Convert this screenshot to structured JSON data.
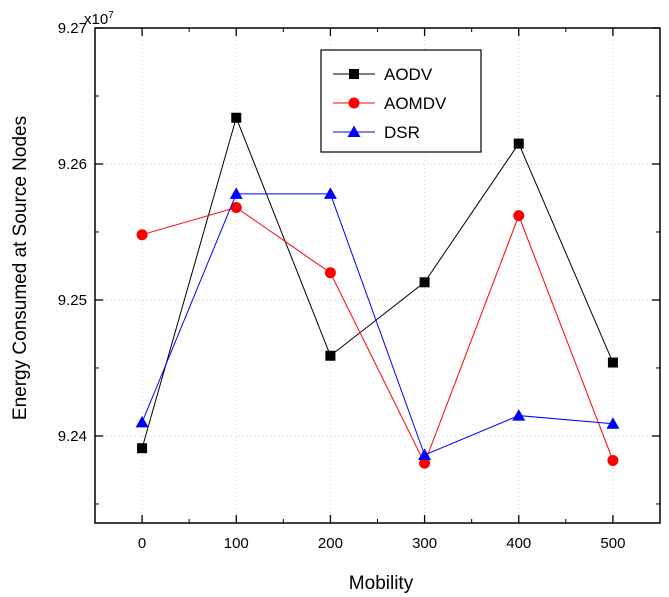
{
  "chart_data": {
    "type": "line",
    "xlabel": "Mobility",
    "ylabel": "Energy Consumed at Source Nodes",
    "y_multiplier": "x10",
    "y_multiplier_exp": "7",
    "x_ticks": [
      0,
      100,
      200,
      300,
      400,
      500
    ],
    "x_tick_labels": [
      "0",
      "100",
      "200",
      "300",
      "400",
      "500"
    ],
    "y_ticks": [
      9.24,
      9.25,
      9.26,
      9.27
    ],
    "y_tick_labels": [
      "9.24",
      "9.25",
      "9.26",
      "9.27"
    ],
    "xlim": [
      -50,
      550
    ],
    "ylim": [
      9.2336,
      9.27
    ],
    "grid": true,
    "legend_position": "top-center",
    "x": [
      0,
      100,
      200,
      300,
      400,
      500
    ],
    "series": [
      {
        "name": "AODV",
        "color": "#000000",
        "marker": "square",
        "values": [
          9.2391,
          9.2634,
          9.2459,
          9.2513,
          9.2615,
          9.2454
        ]
      },
      {
        "name": "AOMDV",
        "color": "#ff0000",
        "marker": "circle",
        "values": [
          9.2548,
          9.2568,
          9.252,
          9.238,
          9.2562,
          9.2382
        ]
      },
      {
        "name": "DSR",
        "color": "#0000ff",
        "marker": "triangle",
        "values": [
          9.241,
          9.2578,
          9.2578,
          9.2386,
          9.2415,
          9.2409
        ]
      }
    ]
  }
}
